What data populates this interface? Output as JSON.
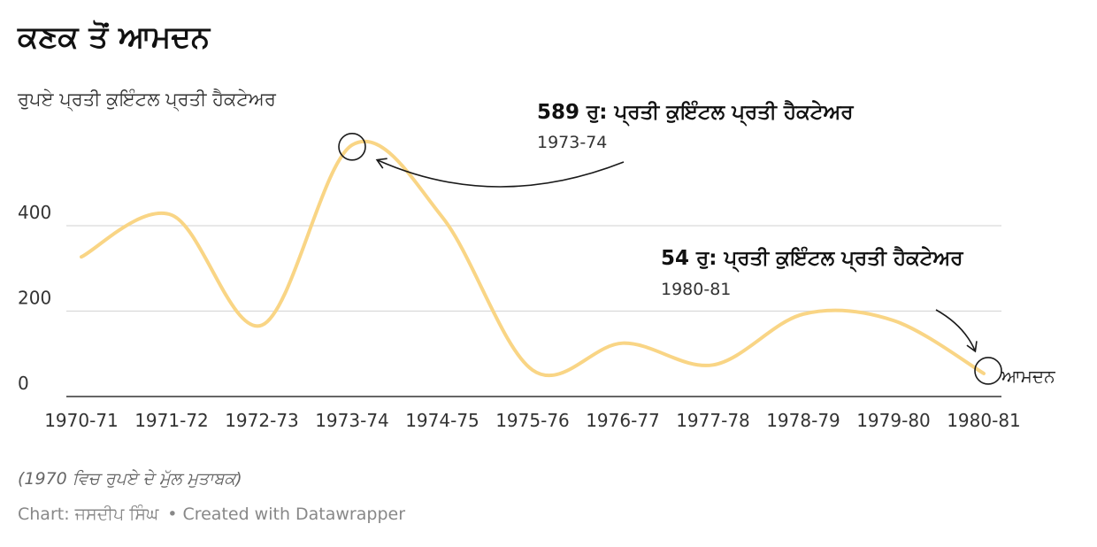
{
  "title": "ਕਣਕ ਤੋਂ ਆਮਦਨ",
  "subtitle": "ਰੁਪਏ ਪ੍ਰਤੀ ਕੁਇੰਟਲ ਪ੍ਰਤੀ ਹੈਕਟੇਅਰ",
  "note": "(1970 ਵਿਚ ਰੁਪਏ ਦੇ ਮੁੱਲ ਮੁਤਾਬਕ)",
  "credit": {
    "label": "Chart: ਜਸਦੀਪ ਸਿੰਘ",
    "separator": "•",
    "tool": "Created with Datawrapper"
  },
  "colors": {
    "line": "#f9d585",
    "grid": "#d9d9d9",
    "baseline": "#333333",
    "annotation": "#1a1a1a"
  },
  "chart_data": {
    "type": "line",
    "categories": [
      "1970-71",
      "1971-72",
      "1972-73",
      "1973-74",
      "1974-75",
      "1975-76",
      "1976-77",
      "1977-78",
      "1978-79",
      "1979-80",
      "1980-81"
    ],
    "series": [
      {
        "name": "ਆਮਦਨ",
        "values": [
          327,
          425,
          167,
          589,
          420,
          62,
          125,
          74,
          193,
          178,
          54
        ]
      }
    ],
    "yticks": [
      0,
      200,
      400
    ],
    "ylim": [
      0,
      600
    ],
    "grid": true,
    "annotations": [
      {
        "value_text": "589 ਰੁ: ਪ੍ਰਤੀ ਕੁਇੰਟਲ ਪ੍ਰਤੀ ਹੈਕਟੇਅਰ",
        "period": "1973-74",
        "index": 3
      },
      {
        "value_text": "54 ਰੁ: ਪ੍ਰਤੀ ਕੁਇੰਟਲ ਪ੍ਰਤੀ ਹੈਕਟੇਅਰ",
        "period": "1980-81",
        "index": 10
      }
    ]
  }
}
